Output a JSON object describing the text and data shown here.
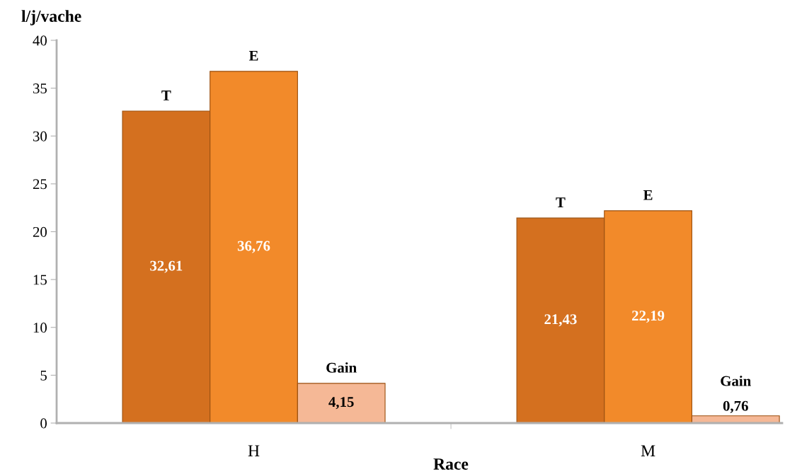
{
  "chart_data": {
    "type": "bar",
    "ylabel": "l/j/vache",
    "xlabel": "Race",
    "categories": [
      "H",
      "M"
    ],
    "ylim": [
      0,
      40
    ],
    "yticks": [
      0,
      5,
      10,
      15,
      20,
      25,
      30,
      35,
      40
    ],
    "grid": false,
    "legend": false,
    "series": [
      {
        "name": "T",
        "color": "#d4701f",
        "values": [
          32.61,
          21.43
        ],
        "value_labels": [
          "32,61",
          "21,43"
        ]
      },
      {
        "name": "E",
        "color": "#f28a2a",
        "values": [
          36.76,
          22.19
        ],
        "value_labels": [
          "36,76",
          "22,19"
        ]
      },
      {
        "name": "Gain",
        "color": "#f5b896",
        "values": [
          4.15,
          0.76
        ],
        "value_labels": [
          "4,15",
          "0,76"
        ]
      }
    ]
  }
}
